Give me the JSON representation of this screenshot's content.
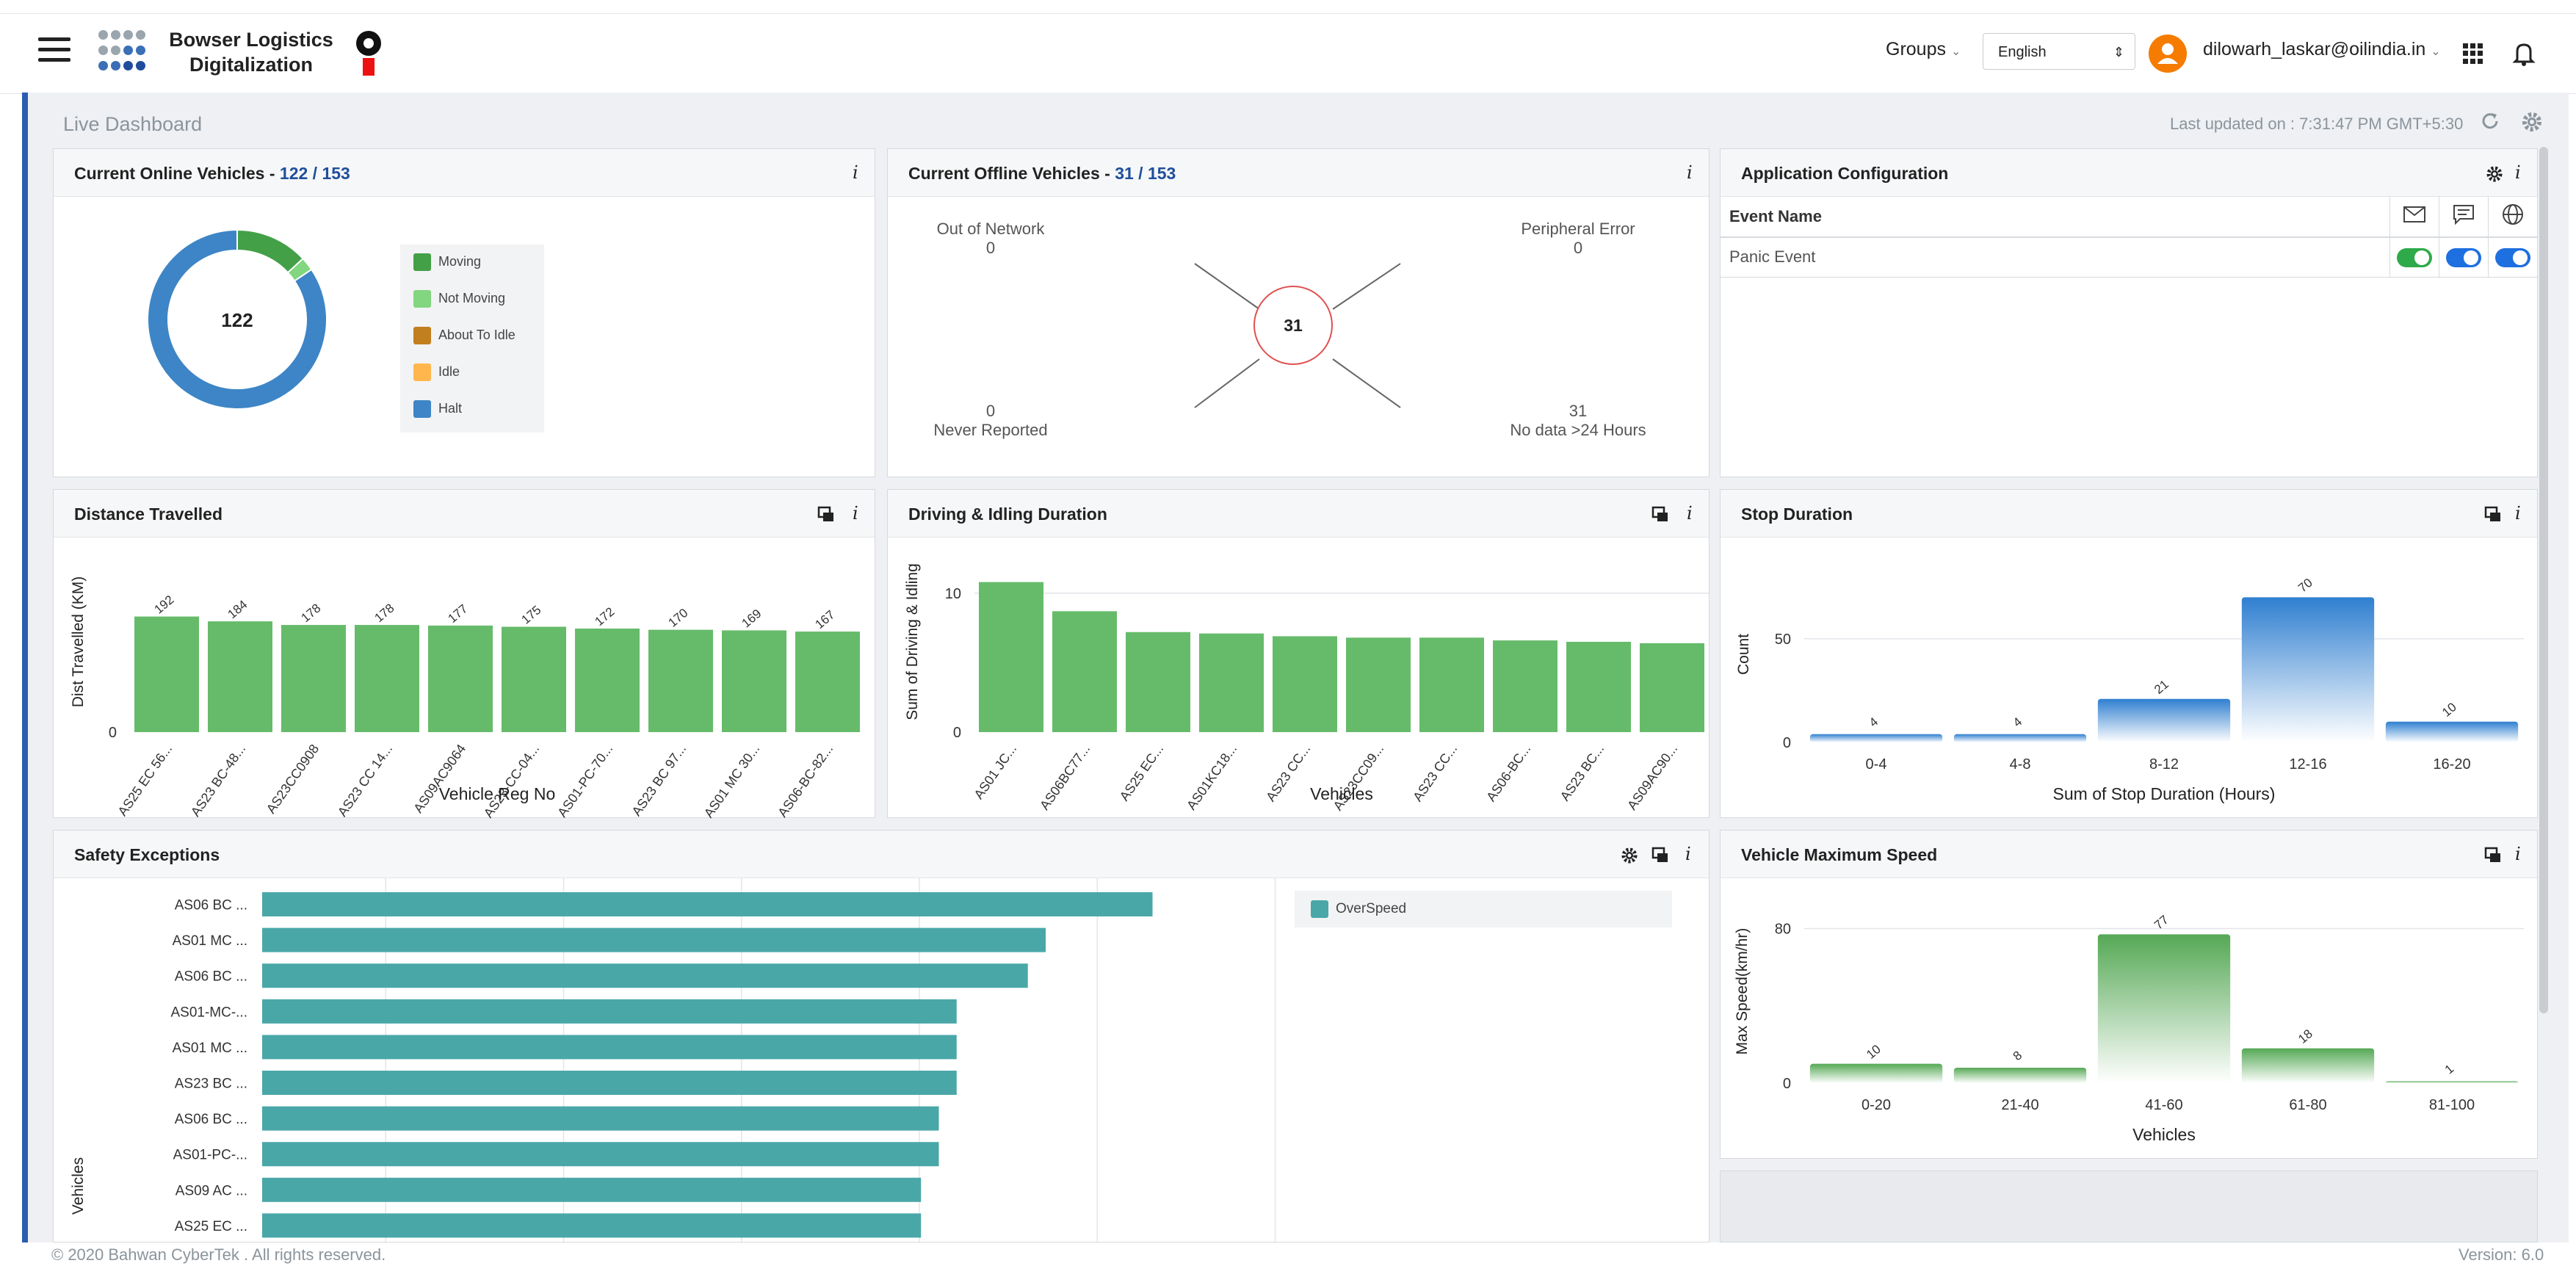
{
  "header": {
    "brand_line1": "Bowser Logistics",
    "brand_line2": "Digitalization",
    "groups_label": "Groups",
    "language": "English",
    "user_email": "dilowarh_laskar@oilindia.in"
  },
  "dashboard": {
    "title": "Live Dashboard",
    "last_updated": "Last updated on : 7:31:47 PM GMT+5:30"
  },
  "online": {
    "title": "Current Online Vehicles - ",
    "count": "122 / 153",
    "center_value": "122",
    "legend": [
      "Moving",
      "Not Moving",
      "About To Idle",
      "Idle",
      "Halt"
    ],
    "colors": [
      "#43a047",
      "#81d67f",
      "#c17f1e",
      "#ffb74d",
      "#3d85c6"
    ],
    "values": [
      16,
      3,
      0,
      0,
      103
    ],
    "info": "i"
  },
  "offline": {
    "title": "Current Offline Vehicles - ",
    "count": "31 / 153",
    "out_of_network_label": "Out of Network",
    "out_of_network_value": "0",
    "peripheral_error_label": "Peripheral Error",
    "peripheral_error_value": "0",
    "never_reported_label": "Never Reported",
    "never_reported_value": "0",
    "no_data_label": "No data >24 Hours",
    "no_data_value": "31",
    "center_value": "31",
    "info": "i"
  },
  "config": {
    "title": "Application Configuration",
    "col_event": "Event Name",
    "row_event": "Panic Event",
    "info": "i"
  },
  "distance": {
    "title": "Distance Travelled",
    "info": "i"
  },
  "driving": {
    "title": "Driving & Idling Duration",
    "info": "i"
  },
  "stop": {
    "title": "Stop Duration",
    "info": "i"
  },
  "safety": {
    "title": "Safety Exceptions",
    "legend": "OverSpeed",
    "info": "i"
  },
  "maxspeed": {
    "title": "Vehicle Maximum Speed",
    "info": "i"
  },
  "footer": {
    "copyright": "© 2020 Bahwan CyberTek . All rights reserved.",
    "version": "Version: 6.0"
  },
  "chart_data": [
    {
      "type": "bar",
      "title": "Distance Travelled",
      "xlabel": "Vehicle Reg No",
      "ylabel": "Dist Travelled (KM)",
      "categories": [
        "AS25 EC 56...",
        "AS23 BC-48...",
        "AS23CC0908",
        "AS23 CC 14...",
        "AS09AC9064",
        "AS23-CC-04...",
        "AS01-PC-70...",
        "AS23 BC 97...",
        "AS01 MC 30...",
        "AS06-BC-82..."
      ],
      "values": [
        192,
        184,
        178,
        178,
        177,
        175,
        172,
        170,
        169,
        167
      ],
      "ymax": 300,
      "yticks": [
        0
      ],
      "color": "#66bb6a"
    },
    {
      "type": "bar",
      "title": "Driving & Idling Duration",
      "xlabel": "Vehicles",
      "ylabel": "Sum of Driving & Idling",
      "categories": [
        "AS01 JC...",
        "AS06BC77...",
        "AS25 EC...",
        "AS01KC18...",
        "AS23 CC...",
        "AS23CC09...",
        "AS23 CC...",
        "AS06-BC...",
        "AS23 BC...",
        "AS09AC90..."
      ],
      "values": [
        10.8,
        8.7,
        7.2,
        7.1,
        6.9,
        6.8,
        6.8,
        6.6,
        6.5,
        6.4
      ],
      "ymax": 13,
      "yticks": [
        0,
        10
      ],
      "color": "#66bb6a"
    },
    {
      "type": "bar",
      "title": "Stop Duration",
      "xlabel": "Sum of Stop Duration (Hours)",
      "ylabel": "Count",
      "categories": [
        "0-4",
        "4-8",
        "8-12",
        "12-16",
        "16-20"
      ],
      "values": [
        4,
        4,
        21,
        70,
        10
      ],
      "ymax": 85,
      "yticks": [
        0,
        50
      ],
      "color": "#2f7fd0"
    },
    {
      "type": "bar",
      "title": "Safety Exceptions",
      "ylabel": "Vehicles",
      "series": [
        {
          "name": "OverSpeed",
          "values": [
            15,
            13.2,
            12.9,
            11.7,
            11.7,
            11.7,
            11.4,
            11.4,
            11.1,
            11.1
          ]
        }
      ],
      "categories": [
        "AS06 BC ...",
        "AS01 MC ...",
        "AS06 BC ...",
        "AS01-MC-...",
        "AS01 MC ...",
        "AS23 BC ...",
        "AS06 BC ...",
        "AS01-PC-...",
        "AS09 AC ...",
        "AS25 EC ..."
      ],
      "xmax": 18,
      "color": "#4aa7a8"
    },
    {
      "type": "bar",
      "title": "Vehicle Maximum Speed",
      "xlabel": "Vehicles",
      "ylabel": "Max Speed(km/hr)",
      "categories": [
        "0-20",
        "21-40",
        "41-60",
        "61-80",
        "81-100"
      ],
      "values": [
        10,
        8,
        77,
        18,
        1
      ],
      "ymax": 95,
      "yticks": [
        0,
        80
      ],
      "color": "#55a855"
    }
  ]
}
